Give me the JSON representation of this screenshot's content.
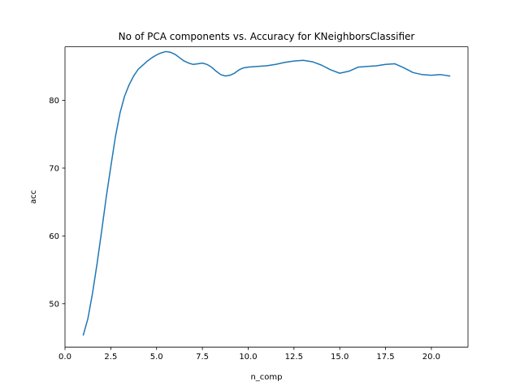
{
  "chart_data": {
    "type": "line",
    "title": "No of PCA components vs. Accuracy for KNeighborsClassifier",
    "xlabel": "n_comp",
    "ylabel": "acc",
    "xlim": [
      0.0,
      22.0
    ],
    "ylim": [
      43.6,
      87.9
    ],
    "grid": false,
    "x_ticks": [
      0.0,
      2.5,
      5.0,
      7.5,
      10.0,
      12.5,
      15.0,
      17.5,
      20.0
    ],
    "x_tick_labels": [
      "0.0",
      "2.5",
      "5.0",
      "7.5",
      "10.0",
      "12.5",
      "15.0",
      "17.5",
      "20.0"
    ],
    "y_ticks": [
      50,
      60,
      70,
      80
    ],
    "y_tick_labels": [
      "50",
      "60",
      "70",
      "80"
    ],
    "line_color": "#1f77b4",
    "series": [
      {
        "x": [
          1,
          1.25,
          1.5,
          1.75,
          2,
          2.25,
          2.5,
          2.75,
          3,
          3.25,
          3.5,
          3.75,
          4,
          4.25,
          4.5,
          4.75,
          5,
          5.25,
          5.5,
          5.75,
          6,
          6.25,
          6.5,
          6.75,
          7,
          7.25,
          7.5,
          7.75,
          8,
          8.25,
          8.5,
          8.75,
          9,
          9.25,
          9.5,
          9.75,
          10,
          10.5,
          11,
          11.5,
          12,
          12.5,
          13,
          13.5,
          14,
          14.5,
          15,
          15.5,
          16,
          16.5,
          17,
          17.5,
          18,
          18.5,
          19,
          19.5,
          20,
          20.5,
          21
        ],
        "y": [
          45.4,
          47.8,
          51.5,
          55.9,
          60.7,
          65.7,
          70.2,
          74.6,
          78.1,
          80.6,
          82.3,
          83.6,
          84.6,
          85.2,
          85.8,
          86.3,
          86.7,
          87.0,
          87.2,
          87.1,
          86.8,
          86.3,
          85.8,
          85.5,
          85.3,
          85.4,
          85.5,
          85.3,
          84.9,
          84.3,
          83.8,
          83.6,
          83.7,
          84.0,
          84.5,
          84.8,
          84.9,
          85.0,
          85.1,
          85.3,
          85.6,
          85.8,
          85.9,
          85.7,
          85.2,
          84.5,
          84.0,
          84.3,
          84.9,
          85.0,
          85.1,
          85.3,
          85.4,
          84.8,
          84.1,
          83.8,
          83.7,
          83.8,
          83.6
        ]
      }
    ]
  }
}
